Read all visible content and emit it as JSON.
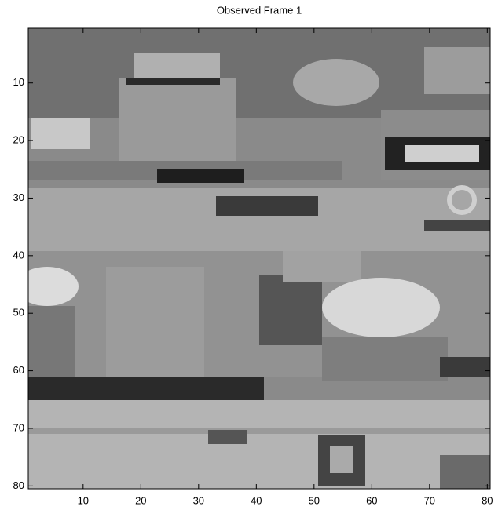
{
  "chart_data": {
    "type": "image",
    "title": "Observed Frame 1",
    "xlim": [
      0.5,
      80.5
    ],
    "ylim": [
      0.5,
      80.5
    ],
    "y_reversed": true,
    "xticks": [
      10,
      20,
      30,
      40,
      50,
      60,
      70,
      80
    ],
    "yticks": [
      10,
      20,
      30,
      40,
      50,
      60,
      70,
      80
    ],
    "colormap": "gray"
  }
}
